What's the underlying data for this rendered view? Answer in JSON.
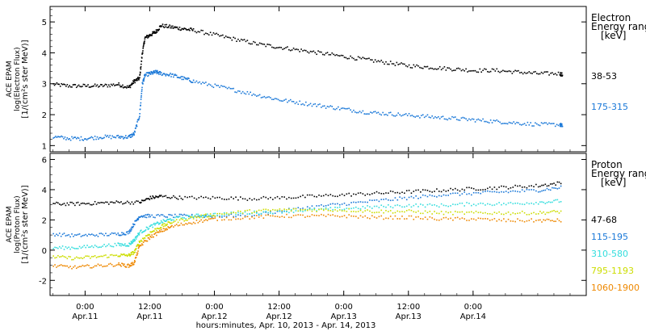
{
  "chart_data": [
    {
      "type": "scatter",
      "panel": "electron",
      "ylabel_lines": [
        "ACE EPAM",
        "log(Electron Flux)",
        "[1/(cm²s ster MeV)]"
      ],
      "ylim": [
        0.8,
        5.5
      ],
      "yticks": [
        1,
        2,
        3,
        4,
        5
      ],
      "xlim": [
        -6.5,
        93
      ],
      "legend_title": [
        "Electron",
        "Energy range",
        "[keV]"
      ],
      "series": [
        {
          "name": "38-53",
          "color": "#000000",
          "x": [
            -6,
            -3,
            0,
            3,
            6,
            8,
            9,
            10,
            10.5,
            11,
            12,
            13,
            14,
            16,
            18,
            20,
            24,
            28,
            32,
            36,
            40,
            44,
            48,
            52,
            56,
            60,
            64,
            68,
            72,
            76,
            80,
            84,
            88,
            88.5
          ],
          "y": [
            3.0,
            2.95,
            2.95,
            2.95,
            3.0,
            2.9,
            3.1,
            3.2,
            4.0,
            4.5,
            4.6,
            4.7,
            4.9,
            4.85,
            4.8,
            4.75,
            4.6,
            4.45,
            4.3,
            4.2,
            4.1,
            4.0,
            3.9,
            3.8,
            3.7,
            3.6,
            3.55,
            3.5,
            3.45,
            3.45,
            3.4,
            3.35,
            3.35,
            3.3
          ]
        },
        {
          "name": "175-315",
          "color": "#1a78d8",
          "x": [
            -6,
            -3,
            0,
            3,
            6,
            8,
            9,
            10,
            10.5,
            11,
            12,
            13,
            14,
            16,
            18,
            20,
            24,
            28,
            32,
            36,
            40,
            44,
            48,
            52,
            56,
            60,
            64,
            68,
            72,
            76,
            80,
            84,
            88,
            88.5
          ],
          "y": [
            1.3,
            1.25,
            1.25,
            1.3,
            1.3,
            1.3,
            1.4,
            2.0,
            3.0,
            3.3,
            3.35,
            3.4,
            3.35,
            3.3,
            3.2,
            3.1,
            2.95,
            2.8,
            2.65,
            2.5,
            2.4,
            2.3,
            2.2,
            2.1,
            2.05,
            2.0,
            1.95,
            1.9,
            1.85,
            1.8,
            1.75,
            1.7,
            1.7,
            1.65
          ]
        }
      ]
    },
    {
      "type": "scatter",
      "panel": "proton",
      "ylabel_lines": [
        "ACE EPAM",
        "log(Proton Flux)",
        "[1/(cm²s ster MeV)]"
      ],
      "ylim": [
        -3.0,
        6.4
      ],
      "yticks": [
        -2,
        0,
        2,
        4,
        6
      ],
      "xlim": [
        -6.5,
        93
      ],
      "legend_title": [
        "Proton",
        "Energy range",
        "[keV]"
      ],
      "series": [
        {
          "name": "47-68",
          "color": "#000000",
          "x": [
            -6,
            -2,
            2,
            6,
            10,
            12,
            14,
            18,
            24,
            30,
            36,
            42,
            48,
            54,
            60,
            66,
            72,
            78,
            84,
            88.5
          ],
          "y": [
            3.1,
            3.1,
            3.15,
            3.2,
            3.2,
            3.5,
            3.6,
            3.5,
            3.5,
            3.45,
            3.5,
            3.6,
            3.7,
            3.8,
            3.9,
            4.0,
            4.1,
            4.2,
            4.3,
            4.5
          ]
        },
        {
          "name": "115-195",
          "color": "#1a78d8",
          "x": [
            -6,
            -2,
            2,
            6,
            8,
            9,
            10,
            12,
            16,
            20,
            24,
            30,
            36,
            42,
            48,
            54,
            60,
            66,
            72,
            78,
            84,
            88.5
          ],
          "y": [
            1.1,
            1.0,
            1.05,
            1.1,
            1.2,
            1.8,
            2.3,
            2.3,
            2.3,
            2.3,
            2.3,
            2.35,
            2.6,
            2.9,
            3.1,
            3.3,
            3.5,
            3.7,
            3.8,
            3.9,
            4.0,
            4.2
          ]
        },
        {
          "name": "310-580",
          "color": "#33dddd",
          "x": [
            -6,
            -2,
            2,
            6,
            8,
            9,
            10,
            12,
            14,
            16,
            20,
            24,
            30,
            36,
            42,
            48,
            54,
            60,
            66,
            72,
            78,
            84,
            88.5
          ],
          "y": [
            0.2,
            0.2,
            0.3,
            0.4,
            0.4,
            0.7,
            1.2,
            1.6,
            1.9,
            2.1,
            2.3,
            2.4,
            2.5,
            2.6,
            2.7,
            2.8,
            2.9,
            3.0,
            3.0,
            3.1,
            3.1,
            3.2,
            3.3
          ]
        },
        {
          "name": "795-1193",
          "color": "#ccdd00",
          "x": [
            -6,
            -2,
            2,
            6,
            8,
            9,
            10,
            12,
            14,
            16,
            20,
            24,
            30,
            36,
            42,
            48,
            54,
            60,
            66,
            72,
            78,
            84,
            88.5
          ],
          "y": [
            -0.4,
            -0.5,
            -0.4,
            -0.3,
            -0.3,
            -0.1,
            0.6,
            1.2,
            1.6,
            1.9,
            2.2,
            2.4,
            2.6,
            2.7,
            2.7,
            2.7,
            2.6,
            2.6,
            2.5,
            2.5,
            2.5,
            2.5,
            2.6
          ]
        },
        {
          "name": "1060-1900",
          "color": "#ee8800",
          "x": [
            -6,
            -2,
            2,
            6,
            8,
            9,
            10,
            12,
            14,
            16,
            20,
            24,
            30,
            36,
            42,
            48,
            54,
            60,
            66,
            72,
            78,
            84,
            88.5
          ],
          "y": [
            -1.0,
            -1.1,
            -1.0,
            -0.9,
            -1.0,
            -0.8,
            0.3,
            0.9,
            1.3,
            1.6,
            1.9,
            2.1,
            2.2,
            2.3,
            2.3,
            2.3,
            2.2,
            2.2,
            2.1,
            2.1,
            2.0,
            2.0,
            2.0
          ]
        }
      ]
    }
  ],
  "x_axis": {
    "xlabel": "hours:minutes, Apr. 10, 2013 - Apr. 14, 2013",
    "ticks": [
      {
        "hour": 0,
        "time": "0:00",
        "date": "Apr.11"
      },
      {
        "hour": 12,
        "time": "12:00",
        "date": "Apr.11"
      },
      {
        "hour": 24,
        "time": "0:00",
        "date": "Apr.12"
      },
      {
        "hour": 36,
        "time": "12:00",
        "date": "Apr.12"
      },
      {
        "hour": 48,
        "time": "0:00",
        "date": "Apr.13"
      },
      {
        "hour": 60,
        "time": "12:00",
        "date": "Apr.13"
      },
      {
        "hour": 72,
        "time": "0:00",
        "date": "Apr.14"
      }
    ]
  }
}
